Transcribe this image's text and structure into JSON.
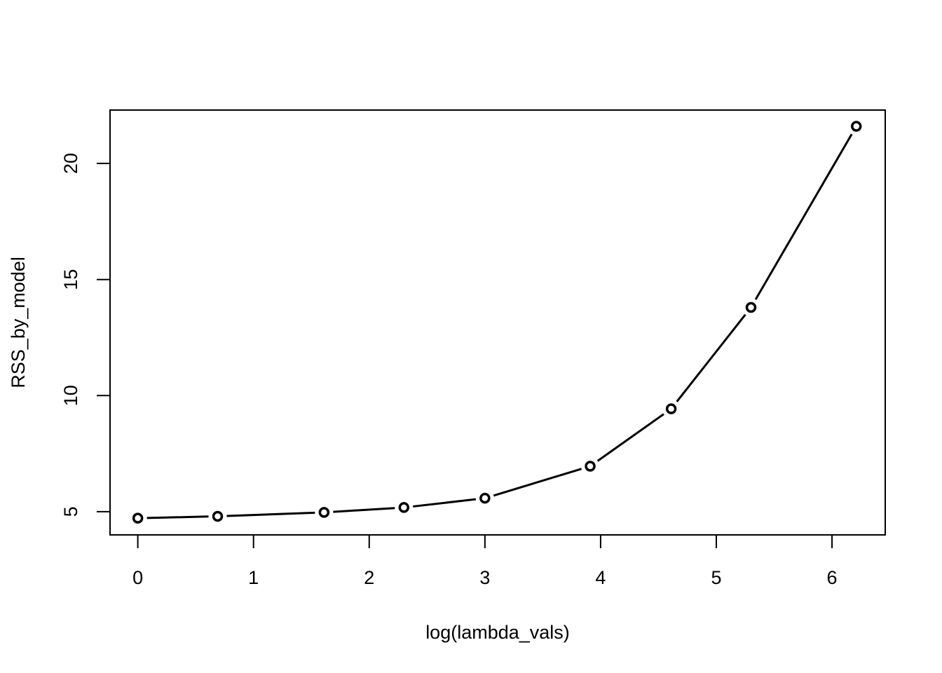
{
  "chart_data": {
    "type": "line",
    "title": "",
    "xlabel": "log(lambda_vals)",
    "ylabel": "RSS_by_model",
    "xlim": [
      -0.24,
      6.46
    ],
    "ylim": [
      4.0,
      22.3
    ],
    "x_ticks": [
      0,
      1,
      2,
      3,
      4,
      5,
      6
    ],
    "y_ticks": [
      5,
      10,
      15,
      20
    ],
    "x_tick_labels": [
      "0",
      "1",
      "2",
      "3",
      "4",
      "5",
      "6"
    ],
    "y_tick_labels": [
      "5",
      "10",
      "15",
      "20"
    ],
    "grid": false,
    "legend": "none",
    "point_style": "open-circle",
    "line_style": "b",
    "series": [
      {
        "x": [
          0,
          0.69,
          1.61,
          2.3,
          3.0,
          3.91,
          4.61,
          5.3,
          6.21
        ],
        "values": [
          4.72,
          4.8,
          4.97,
          5.18,
          5.58,
          6.96,
          9.43,
          13.8,
          21.6
        ]
      }
    ],
    "colors": {
      "line": "#000000",
      "background": "#ffffff"
    }
  }
}
